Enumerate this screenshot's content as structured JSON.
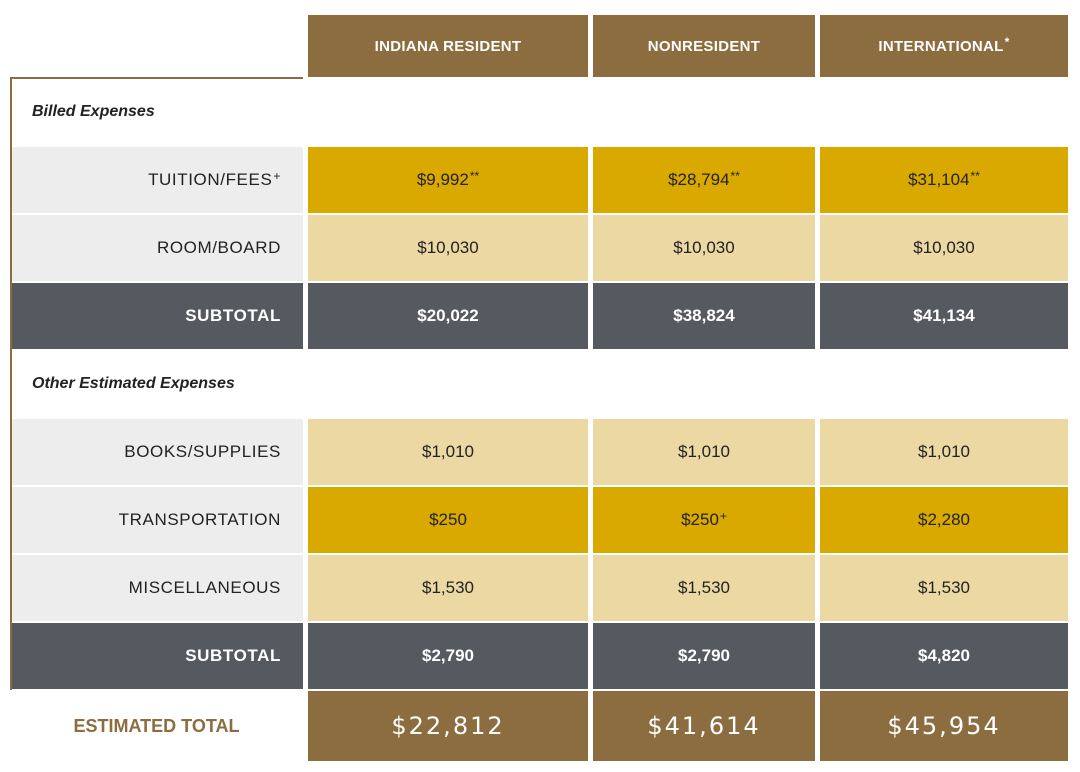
{
  "header": {
    "columns": [
      {
        "label": "INDIANA RESIDENT"
      },
      {
        "label": "NONRESIDENT"
      },
      {
        "label": "INTERNATIONAL",
        "footnote": "*"
      }
    ]
  },
  "sections": [
    {
      "title": "Billed Expenses",
      "rows": [
        {
          "label": "TUITION/FEES",
          "footnote": "+",
          "cells": [
            {
              "value": "$9,992",
              "footnote": "**"
            },
            {
              "value": "$28,794",
              "footnote": "**"
            },
            {
              "value": "$31,104",
              "footnote": "**"
            }
          ]
        },
        {
          "label": "ROOM/BOARD",
          "cells": [
            {
              "value": "$10,030"
            },
            {
              "value": "$10,030"
            },
            {
              "value": "$10,030"
            }
          ]
        },
        {
          "label": "SUBTOTAL",
          "cells": [
            {
              "value": "$20,022"
            },
            {
              "value": "$38,824"
            },
            {
              "value": "$41,134"
            }
          ]
        }
      ]
    },
    {
      "title": "Other Estimated Expenses",
      "rows": [
        {
          "label": "BOOKS/SUPPLIES",
          "cells": [
            {
              "value": "$1,010"
            },
            {
              "value": "$1,010"
            },
            {
              "value": "$1,010"
            }
          ]
        },
        {
          "label": "TRANSPORTATION",
          "cells": [
            {
              "value": "$250"
            },
            {
              "value": "$250",
              "footnote": "+"
            },
            {
              "value": "$2,280"
            }
          ]
        },
        {
          "label": "MISCELLANEOUS",
          "cells": [
            {
              "value": "$1,530"
            },
            {
              "value": "$1,530"
            },
            {
              "value": "$1,530"
            }
          ]
        },
        {
          "label": "SUBTOTAL",
          "cells": [
            {
              "value": "$2,790"
            },
            {
              "value": "$2,790"
            },
            {
              "value": "$4,820"
            }
          ]
        }
      ]
    }
  ],
  "total": {
    "label": "ESTIMATED TOTAL",
    "cells": [
      {
        "value": "$22,812"
      },
      {
        "value": "$41,614"
      },
      {
        "value": "$45,954"
      }
    ]
  }
}
